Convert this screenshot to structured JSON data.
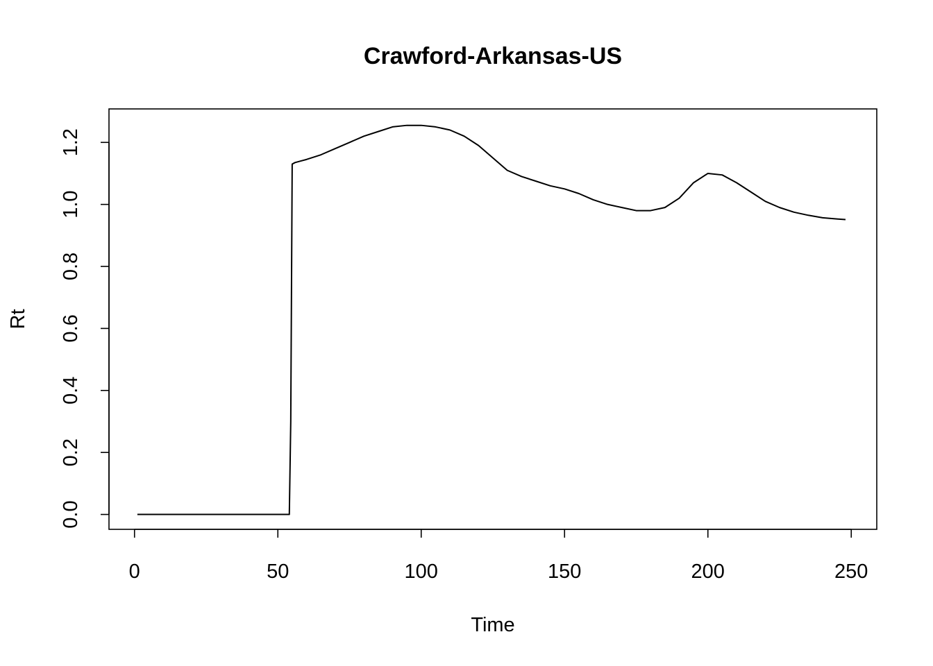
{
  "chart_data": {
    "type": "line",
    "title": "Crawford-Arkansas-US",
    "xlabel": "Time",
    "ylabel": "Rt",
    "xlim": [
      -8.9,
      258.9
    ],
    "ylim": [
      -0.048,
      1.308
    ],
    "x_ticks": [
      0,
      50,
      100,
      150,
      200,
      250
    ],
    "x_tick_labels": [
      "0",
      "50",
      "100",
      "150",
      "200",
      "250"
    ],
    "y_ticks": [
      0.0,
      0.2,
      0.4,
      0.6,
      0.8,
      1.0,
      1.2
    ],
    "y_tick_labels": [
      "0.0",
      "0.2",
      "0.4",
      "0.6",
      "0.8",
      "1.0",
      "1.2"
    ],
    "grid": false,
    "legend": "none",
    "color": "#000000",
    "series": [
      {
        "x": [
          1,
          10,
          20,
          30,
          40,
          50,
          54,
          54.5,
          55,
          56,
          58,
          60,
          65,
          70,
          75,
          80,
          85,
          90,
          95,
          100,
          105,
          110,
          115,
          120,
          125,
          130,
          135,
          140,
          145,
          150,
          155,
          160,
          165,
          170,
          175,
          180,
          185,
          190,
          195,
          200,
          205,
          210,
          215,
          220,
          225,
          230,
          235,
          240,
          245,
          248
        ],
        "y": [
          0,
          0,
          0,
          0,
          0,
          0,
          0,
          0.3,
          1.13,
          1.135,
          1.14,
          1.145,
          1.16,
          1.18,
          1.2,
          1.22,
          1.235,
          1.25,
          1.255,
          1.255,
          1.25,
          1.24,
          1.22,
          1.19,
          1.15,
          1.11,
          1.09,
          1.075,
          1.06,
          1.05,
          1.035,
          1.015,
          1.0,
          0.99,
          0.98,
          0.98,
          0.99,
          1.02,
          1.07,
          1.1,
          1.095,
          1.07,
          1.04,
          1.01,
          0.99,
          0.975,
          0.965,
          0.957,
          0.953,
          0.951
        ]
      }
    ]
  }
}
